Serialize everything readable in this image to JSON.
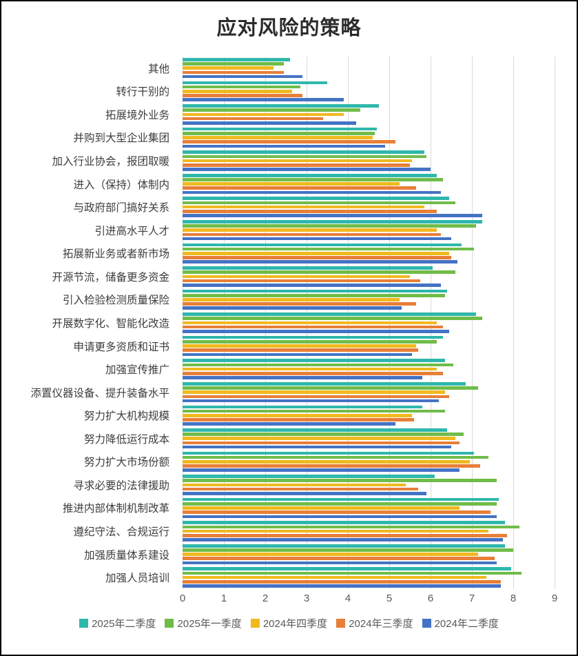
{
  "chart_data": {
    "type": "bar",
    "orientation": "horizontal",
    "title": "应对风险的策略",
    "xlabel": "",
    "ylabel": "",
    "xlim": [
      0,
      9
    ],
    "xticks": [
      0,
      1,
      2,
      3,
      4,
      5,
      6,
      7,
      8,
      9
    ],
    "grid": true,
    "legend_position": "bottom",
    "gridline_color": "#d9d9d9",
    "categories": [
      "其他",
      "转行干别的",
      "拓展境外业务",
      "并购到大型企业集团",
      "加入行业协会，报团取暖",
      "进入（保持）体制内",
      "与政府部门搞好关系",
      "引进高水平人才",
      "拓展新业务或者新市场",
      "开源节流，储备更多资金",
      "引入检验检测质量保险",
      "开展数字化、智能化改造",
      "申请更多资质和证书",
      "加强宣传推广",
      "添置仪器设备、提升装备水平",
      "努力扩大机构规模",
      "努力降低运行成本",
      "努力扩大市场份额",
      "寻求必要的法律援助",
      "推进内部体制机制改革",
      "遵纪守法、合规运行",
      "加强质量体系建设",
      "加强人员培训"
    ],
    "series": [
      {
        "name": "2025年二季度",
        "color": "#2fb7ab",
        "values": [
          2.6,
          3.5,
          4.75,
          4.7,
          5.85,
          6.15,
          6.45,
          7.25,
          6.75,
          6.05,
          6.4,
          7.1,
          6.3,
          6.35,
          6.85,
          5.8,
          6.4,
          7.05,
          6.1,
          7.65,
          7.8,
          7.8,
          7.95
        ]
      },
      {
        "name": "2025年一季度",
        "color": "#70bc49",
        "values": [
          2.45,
          2.85,
          4.3,
          4.65,
          5.9,
          6.3,
          6.6,
          7.1,
          7.05,
          6.6,
          6.35,
          7.25,
          6.15,
          6.55,
          7.15,
          6.35,
          6.8,
          7.4,
          7.6,
          7.6,
          8.15,
          8.0,
          8.2
        ]
      },
      {
        "name": "2024年四季度",
        "color": "#f0b91e",
        "values": [
          2.2,
          2.65,
          3.9,
          4.6,
          5.55,
          5.25,
          5.85,
          6.15,
          6.45,
          5.5,
          5.25,
          6.15,
          5.65,
          6.15,
          6.35,
          5.55,
          6.6,
          6.95,
          5.4,
          6.7,
          7.4,
          7.15,
          7.35
        ]
      },
      {
        "name": "2024年三季度",
        "color": "#e87f38",
        "values": [
          2.45,
          2.9,
          3.4,
          5.15,
          5.5,
          5.65,
          6.15,
          6.25,
          6.5,
          5.75,
          5.65,
          6.3,
          5.7,
          6.3,
          6.45,
          5.6,
          6.7,
          7.2,
          5.7,
          7.45,
          7.85,
          7.55,
          7.7
        ]
      },
      {
        "name": "2024年二季度",
        "color": "#4473c5",
        "values": [
          2.9,
          3.9,
          4.2,
          4.9,
          6.0,
          6.25,
          7.25,
          6.5,
          6.65,
          6.25,
          5.3,
          6.45,
          5.55,
          5.8,
          6.2,
          5.15,
          6.5,
          6.7,
          5.9,
          7.6,
          7.75,
          7.6,
          7.7
        ]
      }
    ]
  }
}
